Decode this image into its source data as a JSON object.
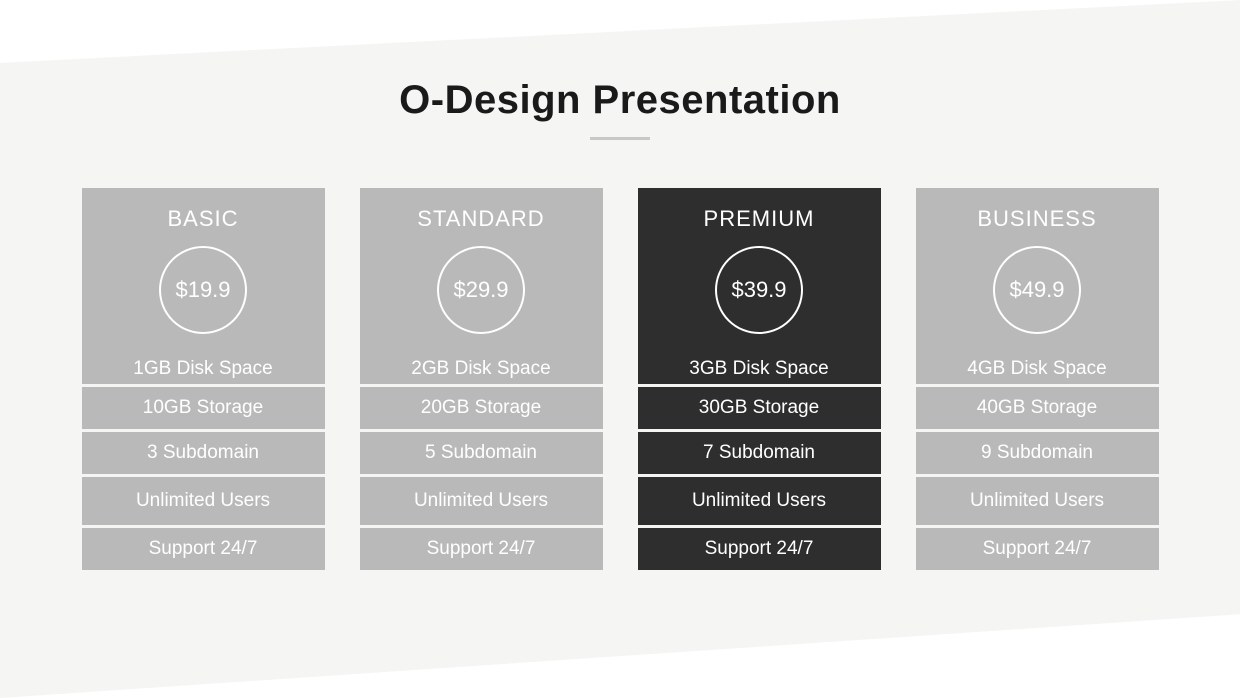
{
  "title": "O-Design Presentation",
  "colors": {
    "normal_bg": "#b9b9b9",
    "highlight_bg": "#2e2e2e",
    "title_color": "#1a1a1a",
    "text_color": "#ffffff",
    "page_bg": "#f5f5f4",
    "underline": "#c8c8c8"
  },
  "plans": [
    {
      "name": "BASIC",
      "price": "$19.9",
      "highlight": false,
      "features": [
        "1GB Disk Space",
        "10GB Storage",
        "3 Subdomain",
        "Unlimited Users",
        "Support 24/7"
      ]
    },
    {
      "name": "STANDARD",
      "price": "$29.9",
      "highlight": false,
      "features": [
        "2GB Disk Space",
        "20GB Storage",
        "5 Subdomain",
        "Unlimited Users",
        "Support 24/7"
      ]
    },
    {
      "name": "PREMIUM",
      "price": "$39.9",
      "highlight": true,
      "features": [
        "3GB Disk Space",
        "30GB Storage",
        "7 Subdomain",
        "Unlimited Users",
        "Support 24/7"
      ]
    },
    {
      "name": "BUSINESS",
      "price": "$49.9",
      "highlight": false,
      "features": [
        "4GB Disk Space",
        "40GB Storage",
        "9 Subdomain",
        "Unlimited Users",
        "Support 24/7"
      ]
    }
  ]
}
